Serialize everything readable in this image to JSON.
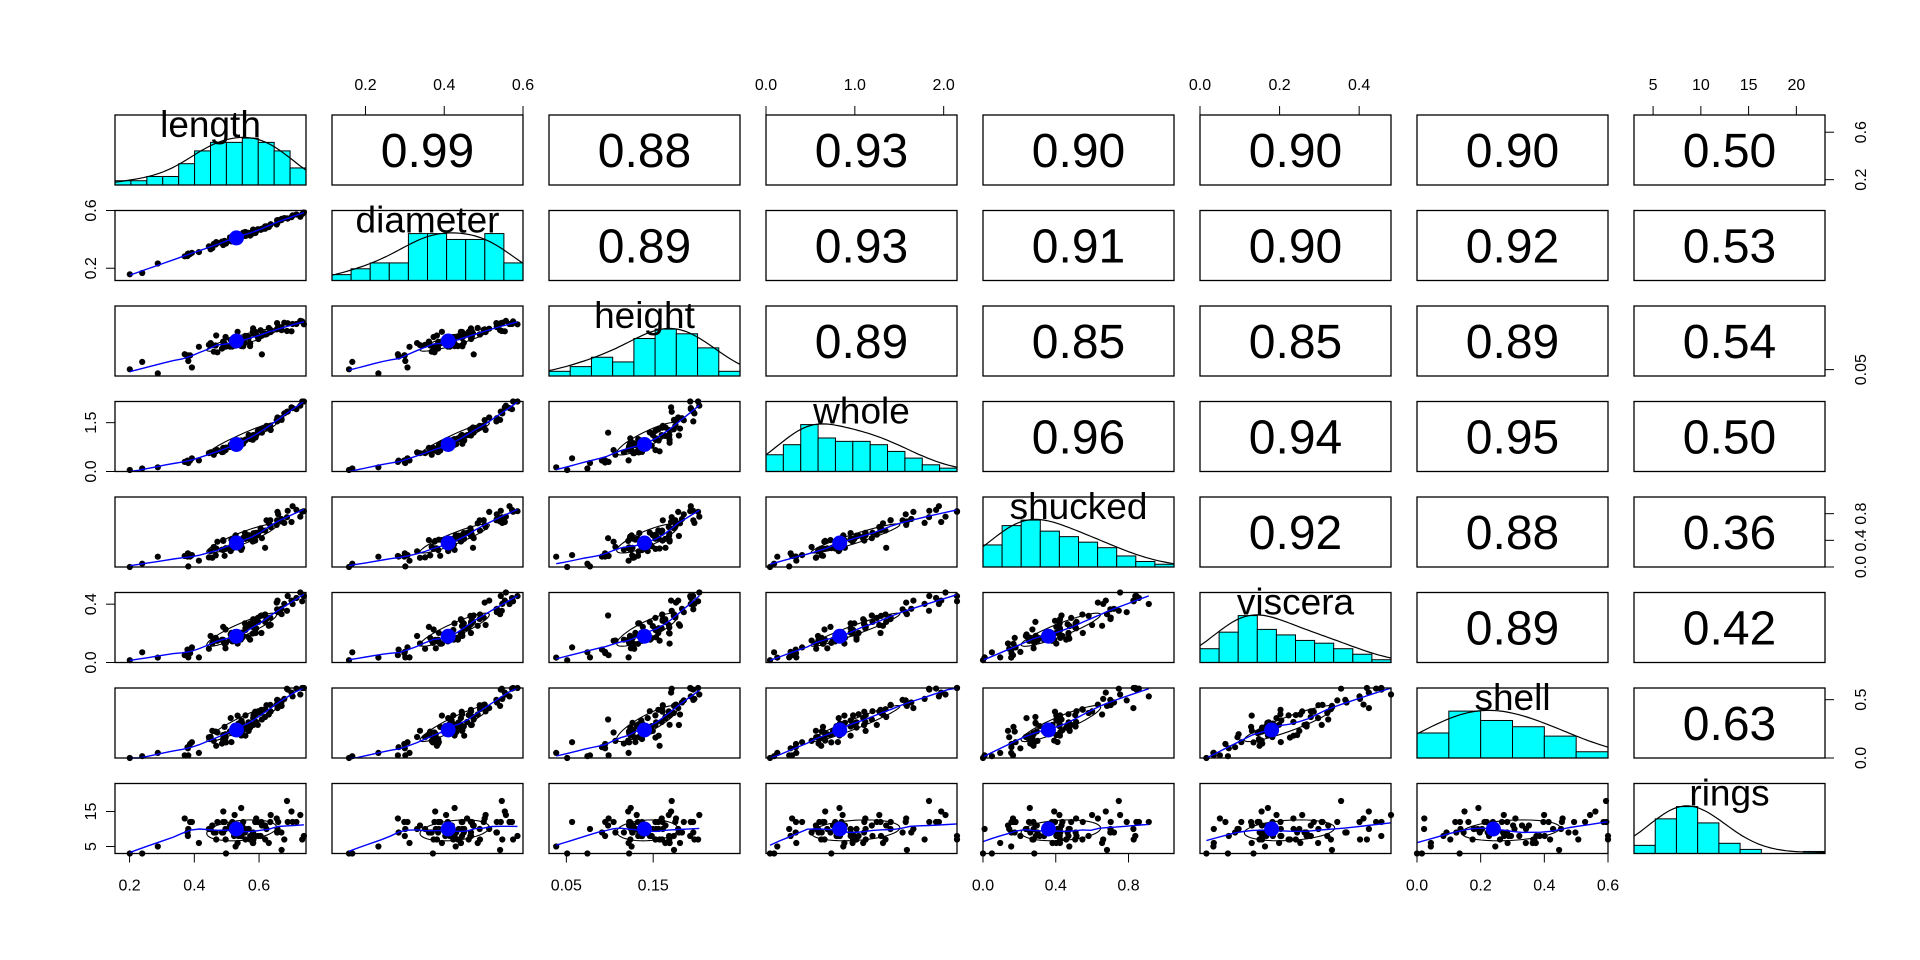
{
  "chart_data": {
    "type": "scatter",
    "variables": [
      "length",
      "diameter",
      "height",
      "whole",
      "shucked",
      "viscera",
      "shell",
      "rings"
    ],
    "axis_ranges": {
      "length": [
        0.155,
        0.745
      ],
      "diameter": [
        0.115,
        0.6
      ],
      "height": [
        0.03,
        0.25
      ],
      "whole": [
        0.0,
        2.15
      ],
      "shucked": [
        0.0,
        1.05
      ],
      "viscera": [
        0.0,
        0.48
      ],
      "shell": [
        0.0,
        0.6
      ],
      "rings": [
        3,
        23
      ]
    },
    "means": {
      "length": 0.53,
      "diameter": 0.41,
      "height": 0.14,
      "whole": 0.83,
      "shucked": 0.36,
      "viscera": 0.18,
      "shell": 0.24,
      "rings": 10.0
    },
    "correlations": [
      {
        "row": "length",
        "col": "diameter",
        "label": "0.99"
      },
      {
        "row": "length",
        "col": "height",
        "label": "0.88"
      },
      {
        "row": "length",
        "col": "whole",
        "label": "0.93"
      },
      {
        "row": "length",
        "col": "shucked",
        "label": "0.90"
      },
      {
        "row": "length",
        "col": "viscera",
        "label": "0.90"
      },
      {
        "row": "length",
        "col": "shell",
        "label": "0.90"
      },
      {
        "row": "length",
        "col": "rings",
        "label": "0.50"
      },
      {
        "row": "diameter",
        "col": "height",
        "label": "0.89"
      },
      {
        "row": "diameter",
        "col": "whole",
        "label": "0.93"
      },
      {
        "row": "diameter",
        "col": "shucked",
        "label": "0.91"
      },
      {
        "row": "diameter",
        "col": "viscera",
        "label": "0.90"
      },
      {
        "row": "diameter",
        "col": "shell",
        "label": "0.92"
      },
      {
        "row": "diameter",
        "col": "rings",
        "label": "0.53"
      },
      {
        "row": "height",
        "col": "whole",
        "label": "0.89"
      },
      {
        "row": "height",
        "col": "shucked",
        "label": "0.85"
      },
      {
        "row": "height",
        "col": "viscera",
        "label": "0.85"
      },
      {
        "row": "height",
        "col": "shell",
        "label": "0.89"
      },
      {
        "row": "height",
        "col": "rings",
        "label": "0.54"
      },
      {
        "row": "whole",
        "col": "shucked",
        "label": "0.96"
      },
      {
        "row": "whole",
        "col": "viscera",
        "label": "0.94"
      },
      {
        "row": "whole",
        "col": "shell",
        "label": "0.95"
      },
      {
        "row": "whole",
        "col": "rings",
        "label": "0.50"
      },
      {
        "row": "shucked",
        "col": "viscera",
        "label": "0.92"
      },
      {
        "row": "shucked",
        "col": "shell",
        "label": "0.88"
      },
      {
        "row": "shucked",
        "col": "rings",
        "label": "0.36"
      },
      {
        "row": "viscera",
        "col": "shell",
        "label": "0.89"
      },
      {
        "row": "viscera",
        "col": "rings",
        "label": "0.42"
      },
      {
        "row": "shell",
        "col": "rings",
        "label": "0.63"
      }
    ],
    "histograms": {
      "length": {
        "edges": [
          0.15,
          0.2,
          0.25,
          0.3,
          0.35,
          0.4,
          0.45,
          0.5,
          0.55,
          0.6,
          0.65,
          0.7,
          0.75
        ],
        "counts": [
          1,
          1,
          2,
          2,
          5,
          8,
          10,
          10,
          11,
          10,
          8,
          4
        ]
      },
      "diameter": {
        "edges": [
          0.1,
          0.15,
          0.2,
          0.25,
          0.3,
          0.35,
          0.4,
          0.45,
          0.5,
          0.55,
          0.6
        ],
        "counts": [
          1,
          2,
          3,
          3,
          8,
          8,
          7,
          7,
          8,
          3
        ]
      },
      "height": {
        "edges": [
          0.025,
          0.05,
          0.075,
          0.1,
          0.125,
          0.15,
          0.175,
          0.2,
          0.225,
          0.25
        ],
        "counts": [
          1,
          2,
          4,
          3,
          8,
          10,
          9,
          6,
          1
        ]
      },
      "whole": {
        "edges": [
          0,
          0.2,
          0.4,
          0.6,
          0.8,
          1.0,
          1.2,
          1.4,
          1.6,
          1.8,
          2.0,
          2.2
        ],
        "counts": [
          5,
          8,
          14,
          10,
          9,
          9,
          8,
          6,
          4,
          2,
          1
        ]
      },
      "shucked": {
        "edges": [
          0,
          0.1,
          0.2,
          0.3,
          0.4,
          0.5,
          0.6,
          0.7,
          0.8,
          0.9,
          1.0
        ],
        "counts": [
          8,
          15,
          17,
          13,
          11,
          9,
          7,
          4,
          2,
          1
        ]
      },
      "viscera": {
        "edges": [
          0,
          0.05,
          0.1,
          0.15,
          0.2,
          0.25,
          0.3,
          0.35,
          0.4,
          0.45,
          0.5
        ],
        "counts": [
          5,
          11,
          17,
          12,
          10,
          8,
          7,
          5,
          3,
          1
        ]
      },
      "shell": {
        "edges": [
          0,
          0.1,
          0.2,
          0.3,
          0.4,
          0.5,
          0.6
        ],
        "counts": [
          8,
          15,
          12,
          10,
          7,
          2
        ]
      },
      "rings": {
        "edges": [
          2.5,
          5,
          7.5,
          10,
          12.5,
          15,
          17.5,
          20,
          22.5,
          25
        ],
        "counts": [
          4,
          17,
          23,
          15,
          5,
          2,
          0,
          0,
          1
        ]
      }
    },
    "tick_axes": [
      {
        "side": "top",
        "panel": 1,
        "ticks": [
          0.2,
          0.4,
          0.6
        ],
        "labels": [
          "0.2",
          "0.4",
          "0.6"
        ]
      },
      {
        "side": "top",
        "panel": 3,
        "ticks": [
          0.0,
          1.0,
          2.0
        ],
        "labels": [
          "0.0",
          "1.0",
          "2.0"
        ]
      },
      {
        "side": "top",
        "panel": 5,
        "ticks": [
          0.0,
          0.2,
          0.4
        ],
        "labels": [
          "0.0",
          "0.2",
          "0.4"
        ]
      },
      {
        "side": "top",
        "panel": 7,
        "ticks": [
          5,
          10,
          15,
          20
        ],
        "labels": [
          "5",
          "10",
          "15",
          "20"
        ]
      },
      {
        "side": "bottom",
        "panel": 0,
        "ticks": [
          0.2,
          0.4,
          0.6
        ],
        "labels": [
          "0.2",
          "0.4",
          "0.6"
        ]
      },
      {
        "side": "bottom",
        "panel": 2,
        "ticks": [
          0.05,
          0.15
        ],
        "labels": [
          "0.05",
          "0.15"
        ]
      },
      {
        "side": "bottom",
        "panel": 4,
        "ticks": [
          0.0,
          0.4,
          0.8
        ],
        "labels": [
          "0.0",
          "0.4",
          "0.8"
        ]
      },
      {
        "side": "bottom",
        "panel": 6,
        "ticks": [
          0.0,
          0.2,
          0.4,
          0.6
        ],
        "labels": [
          "0.0",
          "0.2",
          "0.4",
          "0.6"
        ]
      },
      {
        "side": "left",
        "panel": 1,
        "ticks": [
          0.2,
          0.6
        ],
        "labels": [
          "0.2",
          "0.6"
        ]
      },
      {
        "side": "left",
        "panel": 3,
        "ticks": [
          0.0,
          1.5
        ],
        "labels": [
          "0.0",
          "1.5"
        ]
      },
      {
        "side": "left",
        "panel": 5,
        "ticks": [
          0.0,
          0.4
        ],
        "labels": [
          "0.0",
          "0.4"
        ]
      },
      {
        "side": "left",
        "panel": 7,
        "ticks": [
          5,
          15
        ],
        "labels": [
          "5",
          "15"
        ]
      },
      {
        "side": "right",
        "panel": 0,
        "ticks": [
          0.2,
          0.6
        ],
        "labels": [
          "0.2",
          "0.6"
        ]
      },
      {
        "side": "right",
        "panel": 2,
        "ticks": [
          0.05
        ],
        "labels": [
          "0.05"
        ]
      },
      {
        "side": "right",
        "panel": 4,
        "ticks": [
          0.0,
          0.4,
          0.8
        ],
        "labels": [
          "0.0",
          "0.4",
          "0.8"
        ]
      },
      {
        "side": "right",
        "panel": 6,
        "ticks": [
          0.0,
          0.5
        ],
        "labels": [
          "0.0",
          "0.5"
        ]
      }
    ],
    "colors": {
      "histogram_fill": "#00ffff",
      "fit_line": "#0000ff",
      "mean_point": "#0000ff",
      "points": "#000000"
    },
    "grid": false,
    "legend": "none"
  }
}
